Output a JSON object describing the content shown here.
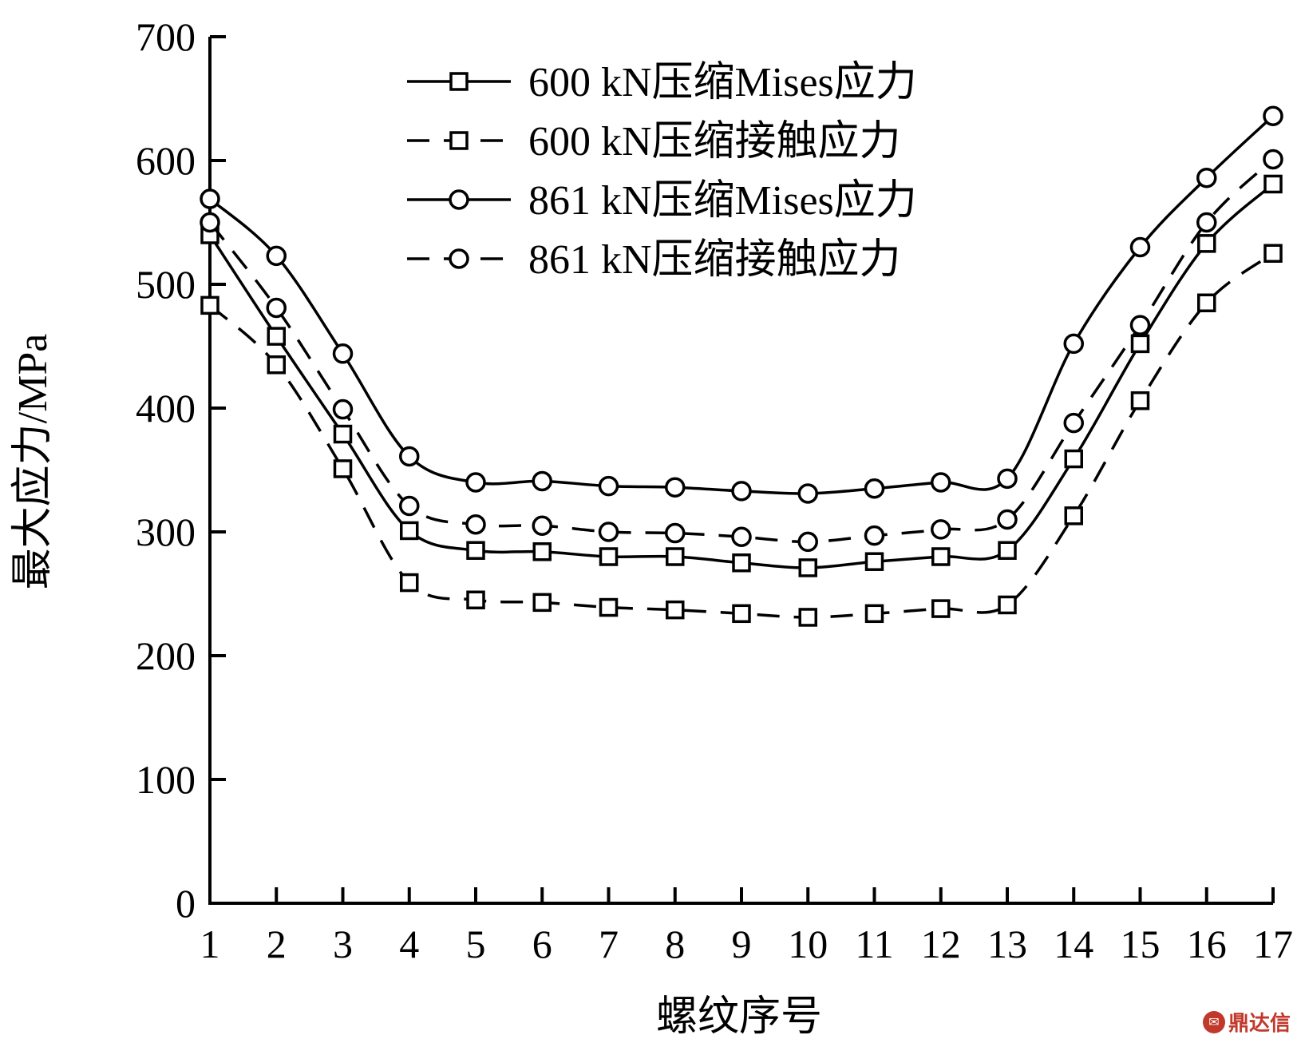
{
  "chart_data": {
    "type": "line",
    "xlabel": "螺纹序号",
    "ylabel": "最大应力/MPa",
    "categories": [
      "1",
      "2",
      "3",
      "4",
      "5",
      "6",
      "7",
      "8",
      "9",
      "10",
      "11",
      "12",
      "13",
      "14",
      "15",
      "16",
      "17"
    ],
    "ylim": [
      0,
      700
    ],
    "yticks": [
      "0",
      "100",
      "200",
      "300",
      "400",
      "500",
      "600",
      "700"
    ],
    "legend_position": "top-center",
    "series": [
      {
        "name": "600 kN压缩Mises应力",
        "line": "solid",
        "marker": "square",
        "values": [
          540,
          458,
          379,
          301,
          285,
          284,
          280,
          280,
          275,
          271,
          276,
          280,
          285,
          359,
          452,
          533,
          581
        ]
      },
      {
        "name": "600 kN压缩接触应力",
        "line": "dashed",
        "marker": "square",
        "values": [
          483,
          435,
          351,
          259,
          245,
          243,
          239,
          237,
          234,
          231,
          234,
          238,
          241,
          313,
          406,
          485,
          525
        ]
      },
      {
        "name": "861 kN压缩Mises应力",
        "line": "solid",
        "marker": "circle",
        "values": [
          569,
          523,
          444,
          361,
          340,
          341,
          337,
          336,
          333,
          331,
          335,
          340,
          343,
          452,
          530,
          586,
          636
        ]
      },
      {
        "name": "861 kN压缩接触应力",
        "line": "dashed",
        "marker": "circle",
        "values": [
          550,
          481,
          399,
          321,
          306,
          305,
          300,
          299,
          296,
          292,
          297,
          302,
          310,
          388,
          467,
          550,
          601
        ]
      }
    ]
  },
  "watermark": {
    "text": "鼎达信",
    "color": "#c0392b"
  }
}
